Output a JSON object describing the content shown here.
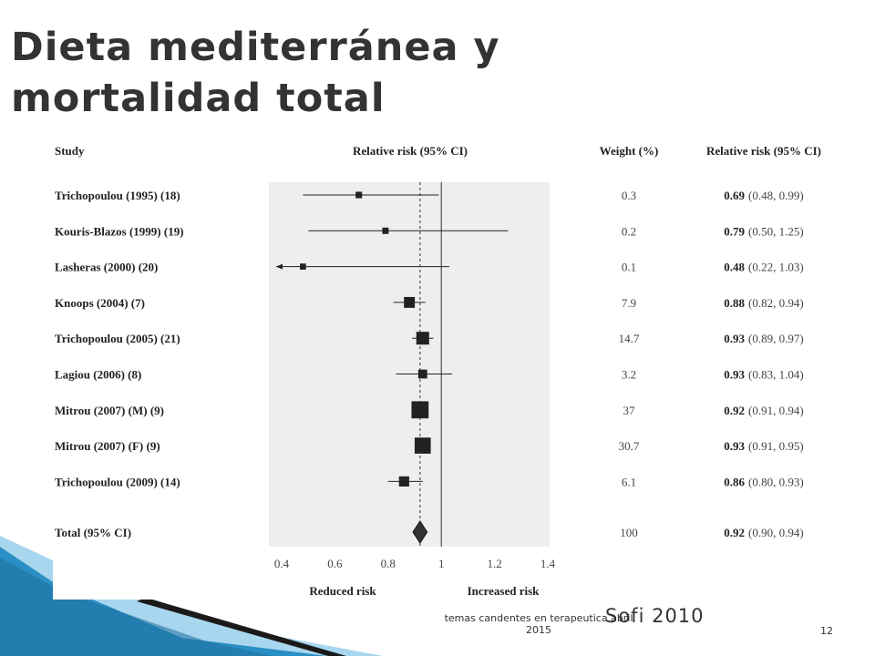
{
  "slide": {
    "title": "Dieta mediterránea y mortalidad total",
    "source": "Sofi 2010",
    "footer": "temas candentes en terapeutica abril 2015",
    "page_number": "12"
  },
  "colors": {
    "plot_background": "#eeeeee",
    "marker": "#222222",
    "accent_blue": "#2a8fc4"
  },
  "chart_data": {
    "type": "forest",
    "headers": {
      "study": "Study",
      "plot": "Relative risk (95% CI)",
      "weight": "Weight (%)",
      "rr": "Relative risk (95% CI)"
    },
    "studies": [
      {
        "label": "Trichopoulou (1995) (18)",
        "weight": "0.3",
        "rr": 0.69,
        "lo": 0.48,
        "hi": 0.99,
        "rr_text": "0.69",
        "ci_text": "(0.48, 0.99)"
      },
      {
        "label": "Kouris-Blazos (1999) (19)",
        "weight": "0.2",
        "rr": 0.79,
        "lo": 0.5,
        "hi": 1.25,
        "rr_text": "0.79",
        "ci_text": "(0.50, 1.25)"
      },
      {
        "label": "Lasheras (2000) (20)",
        "weight": "0.1",
        "rr": 0.48,
        "lo": 0.22,
        "hi": 1.03,
        "rr_text": "0.48",
        "ci_text": "(0.22, 1.03)",
        "arrow_left": true
      },
      {
        "label": "Knoops (2004) (7)",
        "weight": "7.9",
        "rr": 0.88,
        "lo": 0.82,
        "hi": 0.94,
        "rr_text": "0.88",
        "ci_text": "(0.82, 0.94)"
      },
      {
        "label": "Trichopoulou (2005) (21)",
        "weight": "14.7",
        "rr": 0.93,
        "lo": 0.89,
        "hi": 0.97,
        "rr_text": "0.93",
        "ci_text": "(0.89, 0.97)"
      },
      {
        "label": "Lagiou (2006) (8)",
        "weight": "3.2",
        "rr": 0.93,
        "lo": 0.83,
        "hi": 1.04,
        "rr_text": "0.93",
        "ci_text": "(0.83, 1.04)"
      },
      {
        "label": "Mitrou (2007) (M) (9)",
        "weight": "37",
        "rr": 0.92,
        "lo": 0.91,
        "hi": 0.94,
        "rr_text": "0.92",
        "ci_text": "(0.91, 0.94)"
      },
      {
        "label": "Mitrou (2007) (F) (9)",
        "weight": "30.7",
        "rr": 0.93,
        "lo": 0.91,
        "hi": 0.95,
        "rr_text": "0.93",
        "ci_text": "(0.91, 0.95)"
      },
      {
        "label": "Trichopoulou (2009) (14)",
        "weight": "6.1",
        "rr": 0.86,
        "lo": 0.8,
        "hi": 0.93,
        "rr_text": "0.86",
        "ci_text": "(0.80, 0.93)"
      }
    ],
    "total": {
      "label": "Total (95% CI)",
      "weight": "100",
      "rr": 0.92,
      "lo": 0.9,
      "hi": 0.94,
      "rr_text": "0.92",
      "ci_text": "(0.90, 0.94)"
    },
    "x_ticks": [
      "0.4",
      "0.6",
      "0.8",
      "1",
      "1.2",
      "1.4"
    ],
    "xlim": [
      0.4,
      1.4
    ],
    "reference_line": 1,
    "pooled_line": 0.92,
    "x_left_label": "Reduced risk",
    "x_right_label": "Increased risk"
  }
}
